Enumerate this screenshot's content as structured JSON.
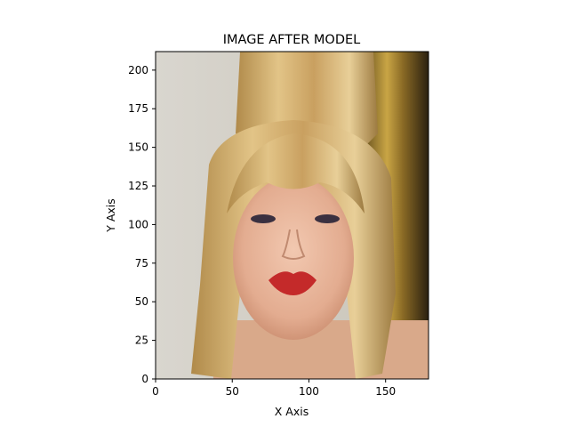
{
  "chart_data": {
    "type": "image",
    "title": "IMAGE AFTER MODEL",
    "xlabel": "X Axis",
    "ylabel": "Y Axis",
    "xlim": [
      0,
      178
    ],
    "ylim": [
      0,
      212
    ],
    "x_ticks": [
      0,
      50,
      100,
      150
    ],
    "y_ticks": [
      0,
      25,
      50,
      75,
      100,
      125,
      150,
      175,
      200
    ],
    "origin": "lower",
    "grid": false,
    "legend": "none",
    "image_description": "close-up portrait of a woman with voluminous blonde hair, heavy eye makeup and red lipstick, against a light grey wall (left) and a dark gold curtain (right)"
  }
}
